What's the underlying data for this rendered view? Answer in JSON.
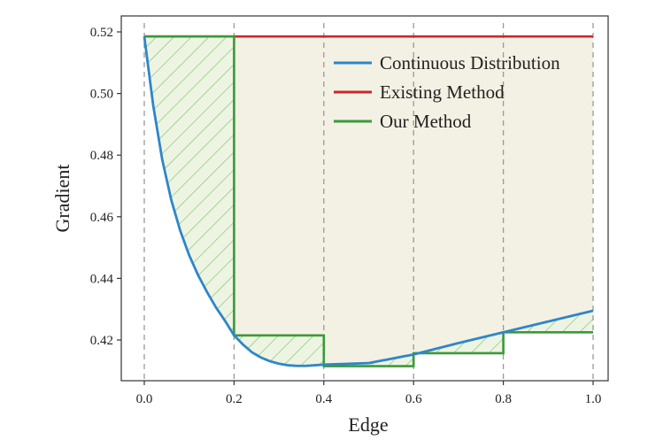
{
  "chart_data": {
    "type": "line",
    "xlabel": "Edge",
    "ylabel": "Gradient",
    "xlim": [
      0.0,
      1.0
    ],
    "ylim": [
      0.405,
      0.522
    ],
    "x_ticks": [
      "0.0",
      "0.2",
      "0.4",
      "0.6",
      "0.8",
      "1.0"
    ],
    "x_tick_values": [
      0.0,
      0.2,
      0.4,
      0.6,
      0.8,
      1.0
    ],
    "y_ticks": [
      "0.42",
      "0.44",
      "0.46",
      "0.48",
      "0.50",
      "0.52"
    ],
    "y_tick_values": [
      0.42,
      0.44,
      0.46,
      0.48,
      0.5,
      0.52
    ],
    "grid": false,
    "vertical_guides_at": [
      0.0,
      0.2,
      0.4,
      0.6,
      0.8,
      1.0
    ],
    "legend_position": "top-right",
    "series": [
      {
        "name": "Continuous Distribution",
        "color": "#2e86c8",
        "x": [
          0.0,
          0.02,
          0.04,
          0.06,
          0.08,
          0.1,
          0.12,
          0.14,
          0.16,
          0.18,
          0.2,
          0.22,
          0.24,
          0.26,
          0.28,
          0.3,
          0.32,
          0.34,
          0.36,
          0.38,
          0.4,
          0.5,
          0.6,
          0.7,
          0.8,
          0.9,
          1.0
        ],
        "y": [
          0.5185,
          0.496,
          0.4785,
          0.4655,
          0.4555,
          0.4475,
          0.441,
          0.4355,
          0.4305,
          0.4262,
          0.4215,
          0.4185,
          0.416,
          0.4143,
          0.4131,
          0.4123,
          0.4118,
          0.4116,
          0.4116,
          0.4118,
          0.412,
          0.4125,
          0.4153,
          0.419,
          0.4225,
          0.426,
          0.4295
        ]
      },
      {
        "name": "Existing Method",
        "color": "#c8282c",
        "x": [
          0.0,
          1.0
        ],
        "y": [
          0.5185,
          0.5185
        ]
      },
      {
        "name": "Our Method",
        "color": "#3a9a3a",
        "step": true,
        "segments": [
          {
            "x0": 0.0,
            "x1": 0.2,
            "y": 0.5185
          },
          {
            "x0": 0.2,
            "x1": 0.4,
            "y": 0.4215
          },
          {
            "x0": 0.4,
            "x1": 0.6,
            "y": 0.4115
          },
          {
            "x0": 0.6,
            "x1": 0.8,
            "y": 0.4157
          },
          {
            "x0": 0.8,
            "x1": 1.0,
            "y": 0.4225
          }
        ]
      }
    ],
    "colors": {
      "region_fill": "#f3f1e4",
      "hatch": "#7cc46c",
      "axis": "#333333",
      "guide": "#999999"
    }
  }
}
